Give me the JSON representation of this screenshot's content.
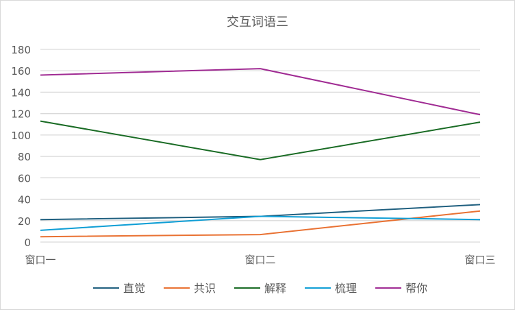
{
  "chart_data": {
    "type": "line",
    "title": "交互词语三",
    "categories": [
      "窗口一",
      "窗口二",
      "窗口三"
    ],
    "ylim": [
      0,
      180
    ],
    "yticks": [
      0,
      20,
      40,
      60,
      80,
      100,
      120,
      140,
      160,
      180
    ],
    "grid": true,
    "legend_position": "bottom",
    "series": [
      {
        "name": "直觉",
        "color": "#1f5f7f",
        "values": [
          21,
          24,
          35
        ]
      },
      {
        "name": "共识",
        "color": "#e97132",
        "values": [
          5,
          7,
          29
        ]
      },
      {
        "name": "解释",
        "color": "#196b24",
        "values": [
          113,
          77,
          112
        ]
      },
      {
        "name": "梳理",
        "color": "#0f9ed5",
        "values": [
          11,
          24,
          21
        ]
      },
      {
        "name": "帮你",
        "color": "#a02b93",
        "values": [
          156,
          162,
          119
        ]
      }
    ]
  }
}
